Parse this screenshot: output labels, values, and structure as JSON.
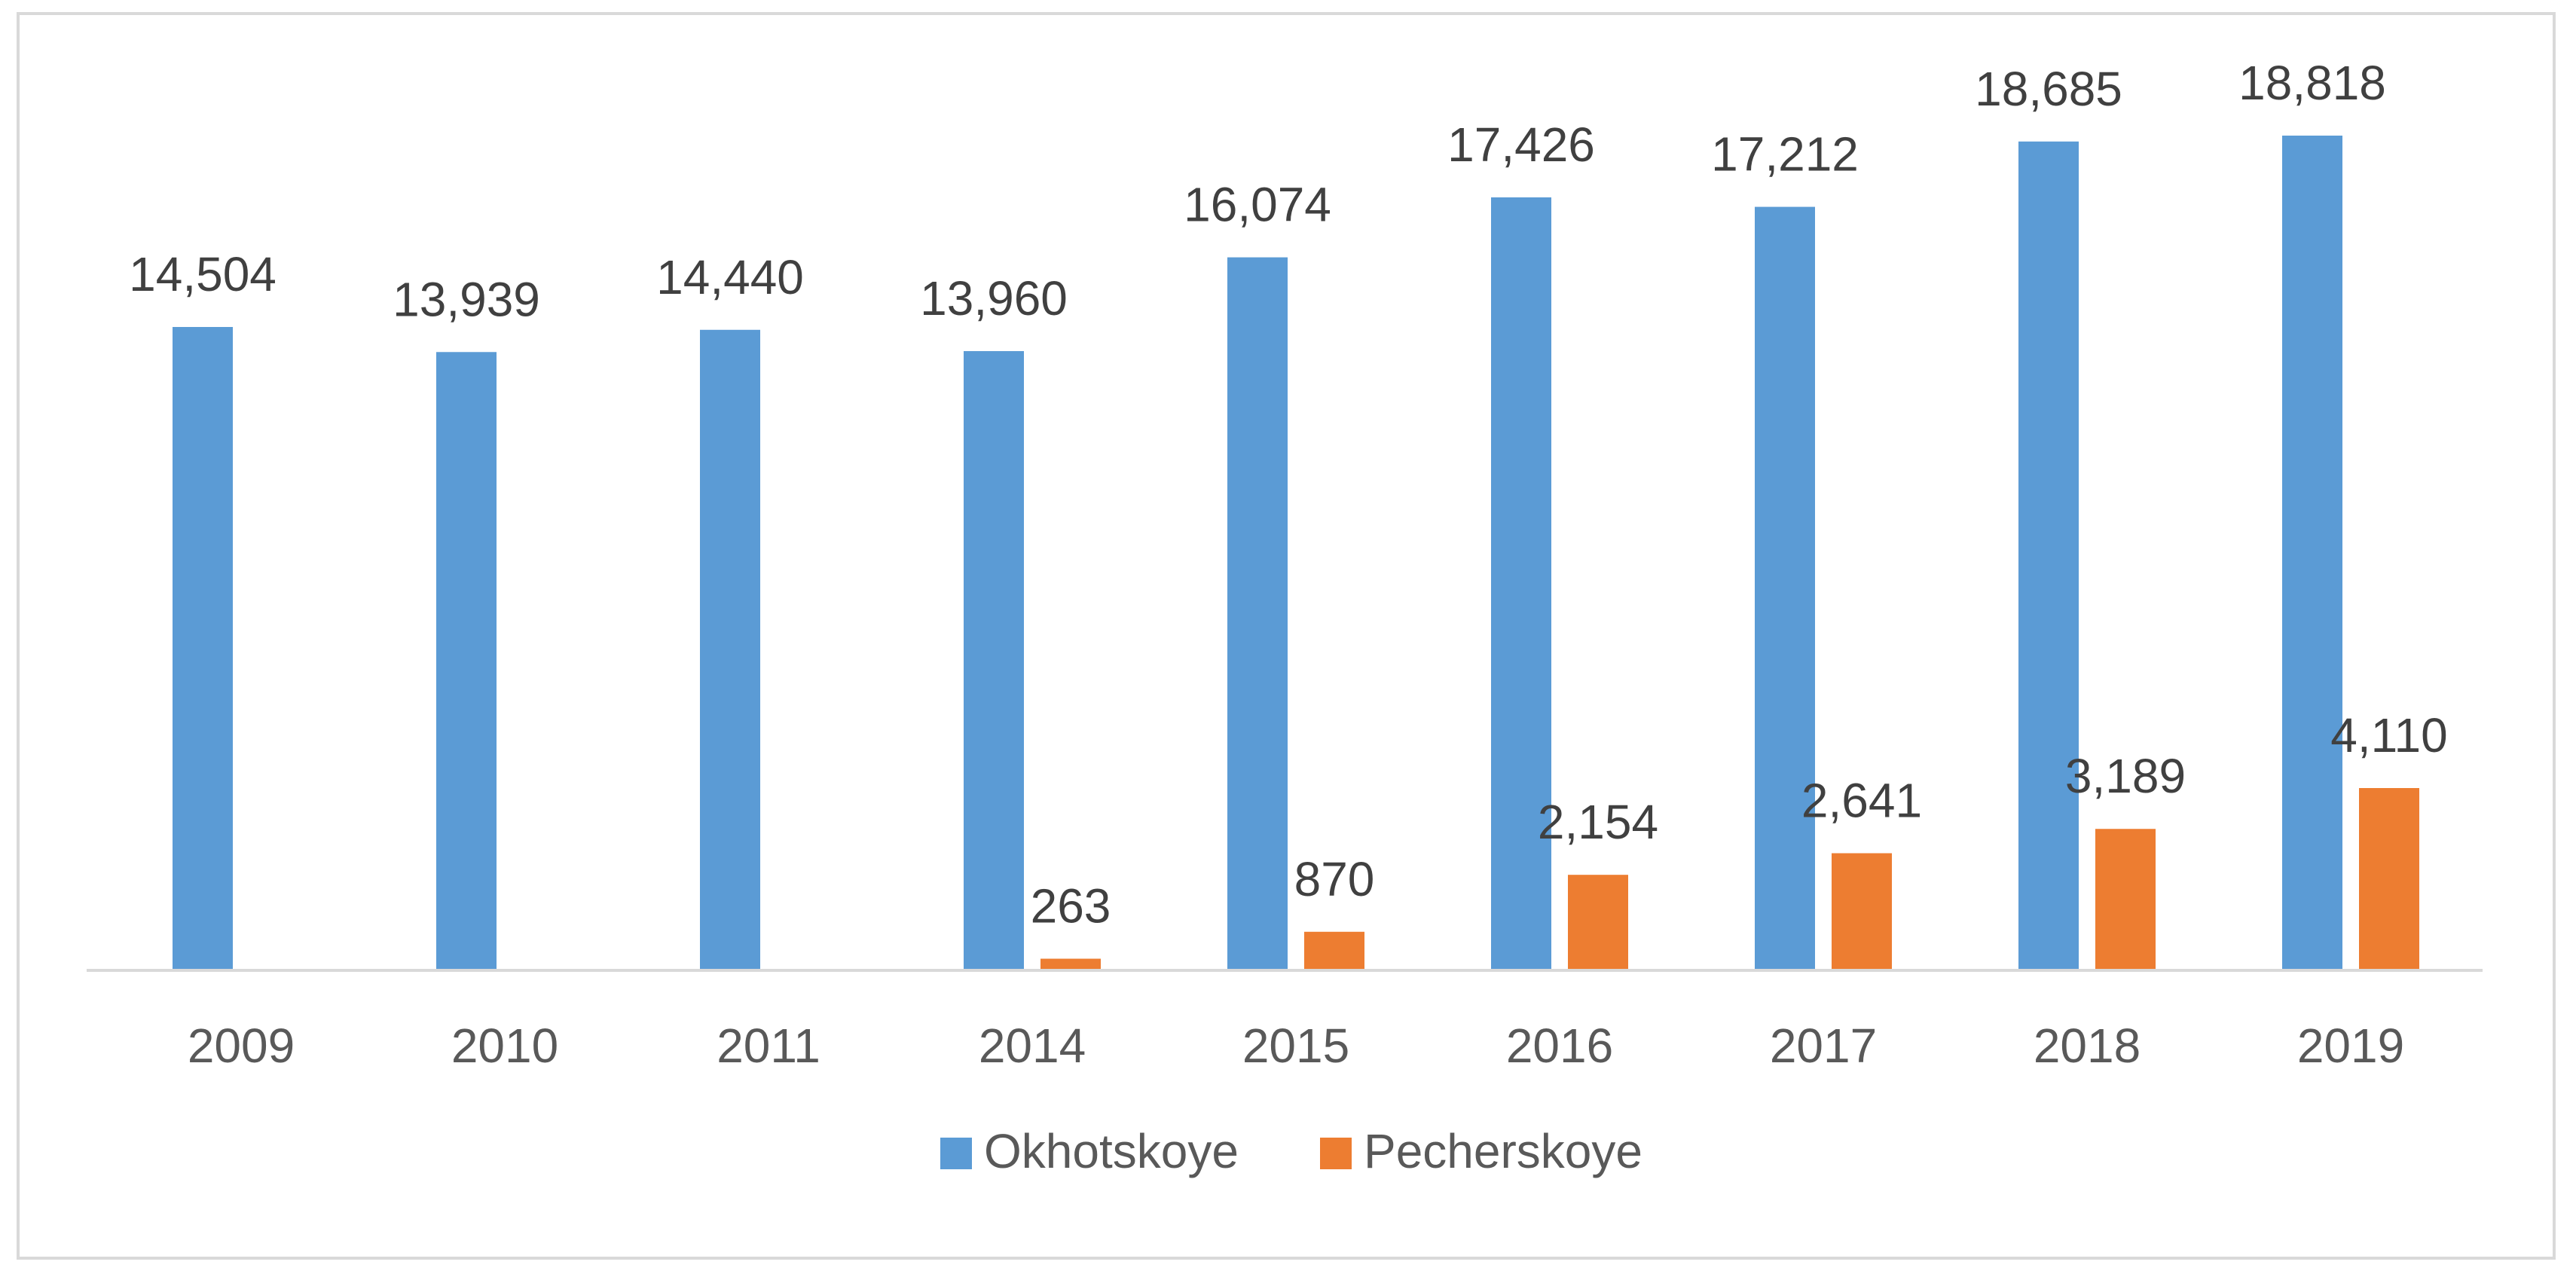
{
  "chart_data": {
    "type": "bar",
    "title": "",
    "xlabel": "",
    "ylabel": "",
    "categories": [
      "2009",
      "2010",
      "2011",
      "2014",
      "2015",
      "2016",
      "2017",
      "2018",
      "2019"
    ],
    "series": [
      {
        "name": "Okhotskoye",
        "color": "#5b9bd5",
        "values": [
          14504,
          13939,
          14440,
          13960,
          16074,
          17426,
          17212,
          18685,
          18818
        ],
        "labels": [
          "14,504",
          "13,939",
          "14,440",
          "13,960",
          "16,074",
          "17,426",
          "17,212",
          "18,685",
          "18,818"
        ]
      },
      {
        "name": "Pecherskoye",
        "color": "#ed7d31",
        "values": [
          null,
          null,
          null,
          263,
          870,
          2154,
          2641,
          3189,
          4110
        ],
        "labels": [
          null,
          null,
          null,
          "263",
          "870",
          "2,154",
          "2,641",
          "3,189",
          "4,110"
        ]
      }
    ],
    "ylim": [
      0,
      20000
    ],
    "grid": false,
    "legend": "bottom-center",
    "axis_color": "#d9d9d9"
  }
}
